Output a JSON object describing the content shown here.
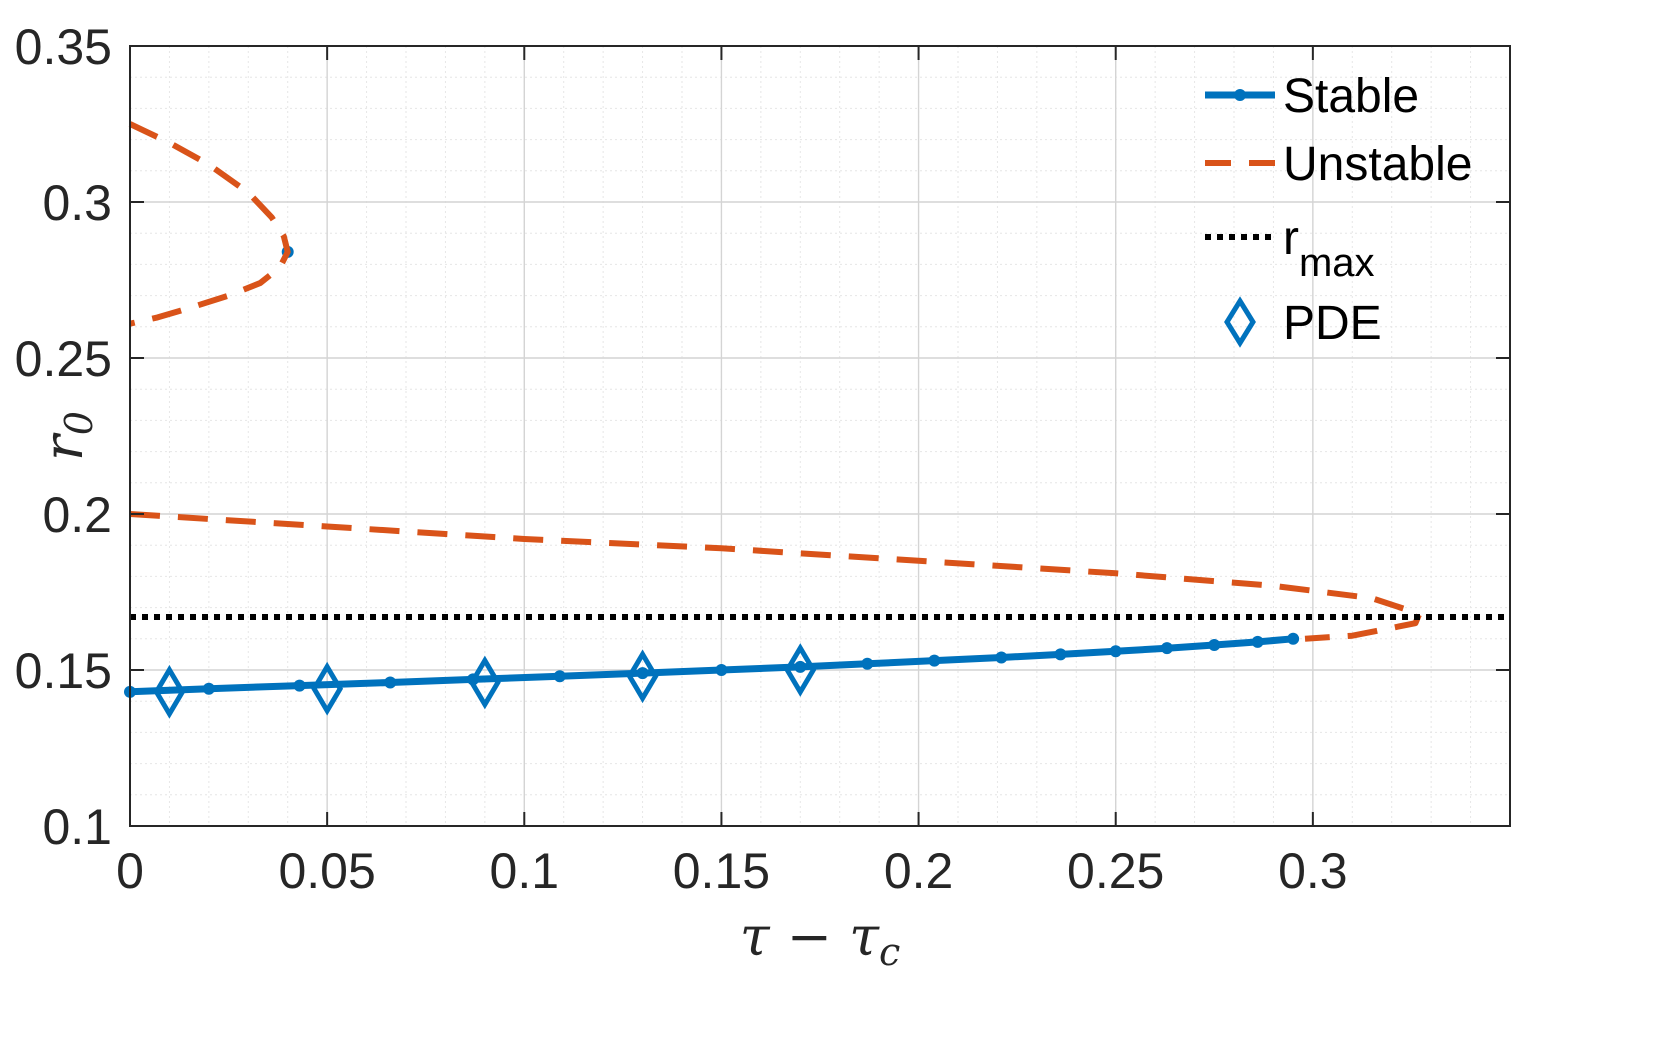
{
  "chart_data": {
    "type": "line",
    "xlabel": "τ − τc",
    "ylabel": "r0",
    "xlim": [
      0,
      0.35
    ],
    "ylim": [
      0.1,
      0.35
    ],
    "x_ticks": [
      0,
      0.05,
      0.1,
      0.15,
      0.2,
      0.25,
      0.3
    ],
    "x_tick_labels": [
      "0",
      "0.05",
      "0.1",
      "0.15",
      "0.2",
      "0.25",
      "0.3"
    ],
    "y_ticks": [
      0.1,
      0.15,
      0.2,
      0.25,
      0.3,
      0.35
    ],
    "y_tick_labels": [
      "0.1",
      "0.15",
      "0.2",
      "0.25",
      "0.3",
      "0.35"
    ],
    "grid": "major and minor",
    "legend_position": "top-right",
    "legend": [
      {
        "label": "Stable",
        "style": "solid line with dot markers",
        "color": "#0072BD"
      },
      {
        "label": "Unstable",
        "style": "dashed line",
        "color": "#D95319"
      },
      {
        "label": "r",
        "sub": "max",
        "style": "dotted line",
        "color": "#000000"
      },
      {
        "label": "PDE",
        "style": "diamond markers",
        "color": "#0072BD"
      }
    ],
    "series": [
      {
        "name": "Stable",
        "color": "#0072BD",
        "points": [
          [
            0,
            0.143
          ],
          [
            0.02,
            0.144
          ],
          [
            0.043,
            0.145
          ],
          [
            0.066,
            0.146
          ],
          [
            0.087,
            0.147
          ],
          [
            0.109,
            0.148
          ],
          [
            0.13,
            0.149
          ],
          [
            0.15,
            0.15
          ],
          [
            0.17,
            0.151
          ],
          [
            0.187,
            0.152
          ],
          [
            0.204,
            0.153
          ],
          [
            0.221,
            0.154
          ],
          [
            0.236,
            0.155
          ],
          [
            0.25,
            0.156
          ],
          [
            0.263,
            0.157
          ],
          [
            0.275,
            0.158
          ],
          [
            0.286,
            0.159
          ],
          [
            0.295,
            0.16
          ]
        ]
      },
      {
        "name": "Stable",
        "color": "#0072BD",
        "points": [
          [
            0.04,
            0.284
          ]
        ]
      },
      {
        "name": "Unstable",
        "color": "#D95319",
        "points": [
          [
            0.0,
            0.325
          ],
          [
            0.01,
            0.319
          ],
          [
            0.02,
            0.312
          ],
          [
            0.03,
            0.303
          ],
          [
            0.036,
            0.295
          ],
          [
            0.039,
            0.289
          ],
          [
            0.04,
            0.284
          ],
          [
            0.038,
            0.279
          ],
          [
            0.033,
            0.274
          ],
          [
            0.025,
            0.27
          ],
          [
            0.015,
            0.266
          ],
          [
            0.007,
            0.263
          ],
          [
            0.0,
            0.261
          ]
        ]
      },
      {
        "name": "Unstable",
        "color": "#D95319",
        "points": [
          [
            0,
            0.2
          ],
          [
            0.05,
            0.196
          ],
          [
            0.1,
            0.192
          ],
          [
            0.15,
            0.189
          ],
          [
            0.2,
            0.185
          ],
          [
            0.25,
            0.181
          ],
          [
            0.29,
            0.177
          ],
          [
            0.315,
            0.173
          ],
          [
            0.327,
            0.168
          ],
          [
            0.326,
            0.165
          ],
          [
            0.31,
            0.161
          ],
          [
            0.298,
            0.16
          ]
        ]
      },
      {
        "name": "r_max",
        "color": "#000000",
        "points": [
          [
            0,
            0.167
          ],
          [
            0.35,
            0.167
          ]
        ]
      },
      {
        "name": "PDE",
        "color": "#0072BD",
        "points": [
          [
            0.01,
            0.143
          ],
          [
            0.05,
            0.144
          ],
          [
            0.09,
            0.146
          ],
          [
            0.13,
            0.148
          ],
          [
            0.17,
            0.15
          ]
        ]
      }
    ]
  }
}
